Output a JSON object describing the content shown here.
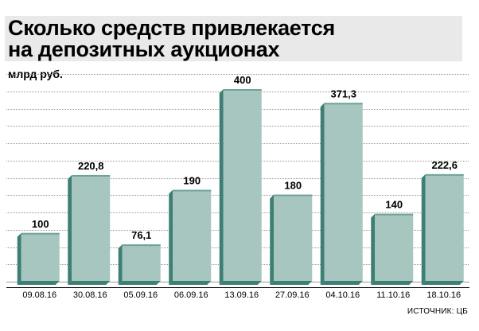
{
  "title": {
    "line1": "Сколько средств привлекается",
    "line2": "на депозитных аукционах"
  },
  "unit_label": "млрд руб.",
  "source": "ИСТОЧНИК: ЦБ",
  "colors": {
    "bar_front": "#a8c6c0",
    "bar_side": "#3d7f74",
    "bar_top": "#6fa49b",
    "grid": "#777777",
    "title_bg": "#e9e9e9"
  },
  "chart_data": {
    "type": "bar",
    "categories": [
      "09.08.16",
      "30.08.16",
      "05.09.16",
      "06.09.16",
      "13.09.16",
      "27.09.16",
      "04.10.16",
      "11.10.16",
      "18.10.16"
    ],
    "values": [
      100,
      220.8,
      76.1,
      190,
      400,
      180,
      371.3,
      140,
      222.6
    ],
    "value_labels": [
      "100",
      "220,8",
      "76,1",
      "190",
      "400",
      "180",
      "371,3",
      "140",
      "222,6"
    ],
    "ylim": [
      0,
      400
    ],
    "grid": true
  }
}
